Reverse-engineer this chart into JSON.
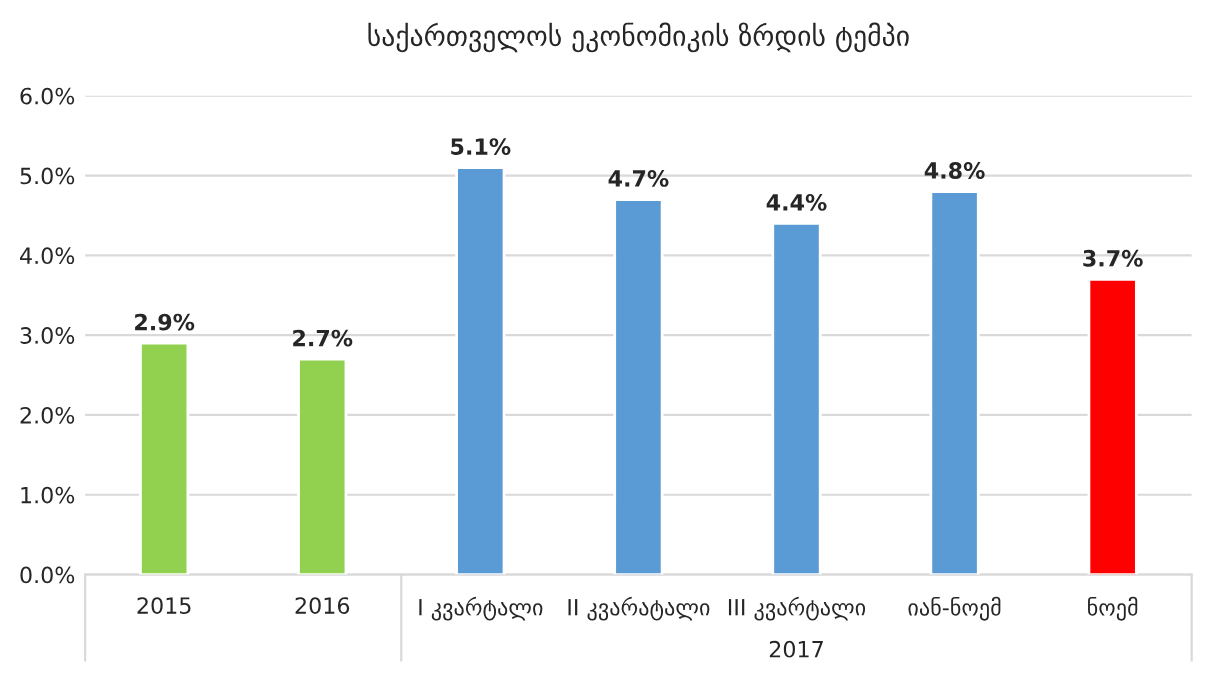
{
  "chart_data": {
    "type": "bar",
    "title": "საქართველოს ეკონომიკის ზრდის ტემპი",
    "categories": [
      "2015",
      "2016",
      "I კვარტალი",
      "II კვარატალი",
      "III კვარტალი",
      "იან-ნოემ",
      "ნოემ"
    ],
    "values": [
      2.9,
      2.7,
      5.1,
      4.7,
      4.4,
      4.8,
      3.7
    ],
    "colors": [
      "#92d050",
      "#92d050",
      "#5b9bd5",
      "#5b9bd5",
      "#5b9bd5",
      "#5b9bd5",
      "#ff0000"
    ],
    "value_labels": [
      "2.9%",
      "2.7%",
      "5.1%",
      "4.7%",
      "4.4%",
      "4.8%",
      "3.7%"
    ],
    "ylim": [
      0,
      6
    ],
    "yticks": [
      {
        "value": 0,
        "label": "0.0%"
      },
      {
        "value": 1,
        "label": "1.0%"
      },
      {
        "value": 2,
        "label": "2.0%"
      },
      {
        "value": 3,
        "label": "3.0%"
      },
      {
        "value": 4,
        "label": "4.0%"
      },
      {
        "value": 5,
        "label": "5.0%"
      },
      {
        "value": 6,
        "label": "6.0%"
      }
    ],
    "grid": "y",
    "annotations": [
      "2017"
    ]
  }
}
